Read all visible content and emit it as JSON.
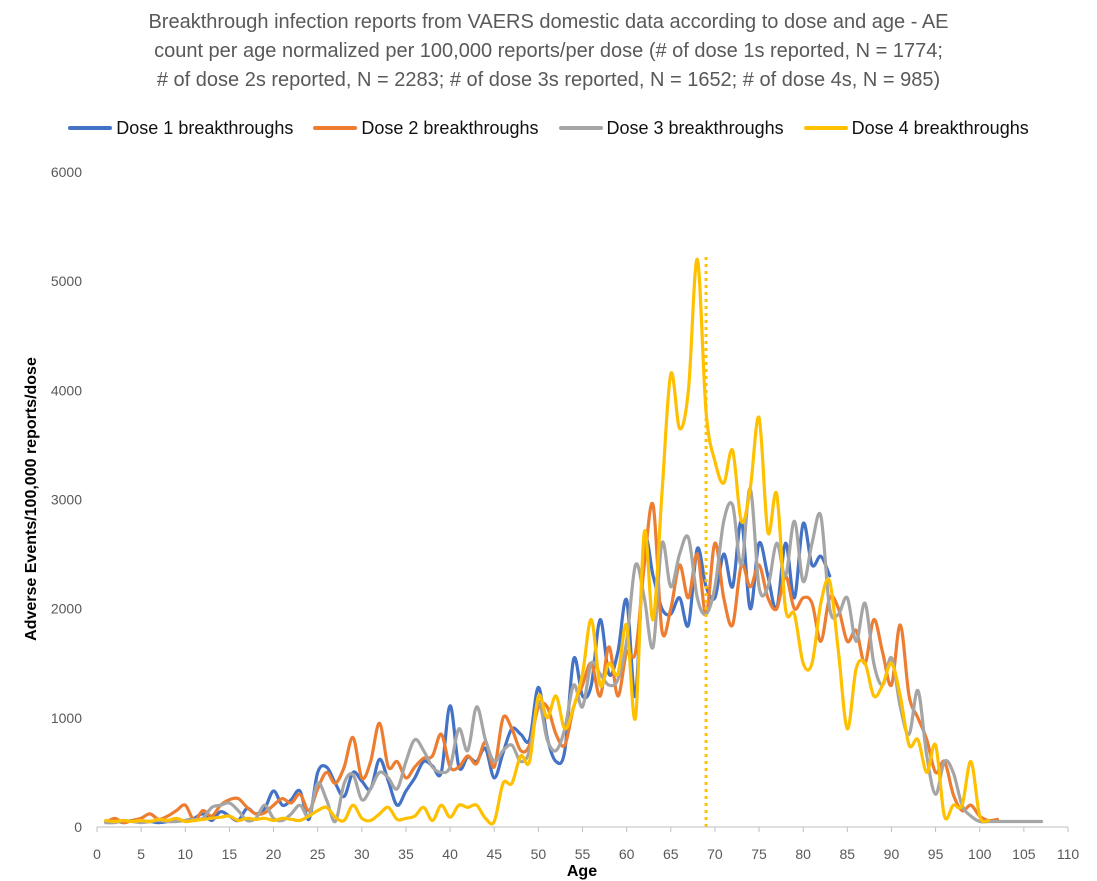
{
  "chart_data": {
    "type": "line",
    "title_lines": [
      "Breakthrough infection reports from VAERS domestic data according to dose and age - AE",
      "count per age normalized per 100,000 reports/per dose (# of dose 1s reported, N = 1774;",
      "# of dose 2s reported, N = 2283; # of dose 3s reported, N = 1652; # of dose 4s, N = 985)"
    ],
    "xlabel": "Age",
    "ylabel": "Adverse Events/100,000 reports/dose",
    "xlim": [
      0,
      110
    ],
    "ylim": [
      0,
      6000
    ],
    "x_ticks": [
      0,
      5,
      10,
      15,
      20,
      25,
      30,
      35,
      40,
      45,
      50,
      55,
      60,
      65,
      70,
      75,
      80,
      85,
      90,
      95,
      100,
      105,
      110
    ],
    "y_ticks": [
      0,
      1000,
      2000,
      3000,
      4000,
      5000,
      6000
    ],
    "x_tick_labels": [
      "0",
      "5",
      "10",
      "15",
      "20",
      "25",
      "30",
      "35",
      "40",
      "45",
      "50",
      "55",
      "60",
      "65",
      "70",
      "75",
      "80",
      "85",
      "90",
      "95",
      "100",
      "105",
      "110"
    ],
    "y_tick_labels": [
      "0",
      "1000",
      "2000",
      "3000",
      "4000",
      "5000",
      "6000"
    ],
    "grid": false,
    "legend_position": "top",
    "reference_line": {
      "x": 69,
      "color": "#FFC000",
      "style": "dotted"
    },
    "series": [
      {
        "name": "Dose 1 breakthroughs",
        "color": "#4472C4",
        "x": [
          1,
          2,
          3,
          4,
          5,
          6,
          7,
          8,
          9,
          10,
          11,
          12,
          13,
          14,
          15,
          16,
          17,
          18,
          19,
          20,
          21,
          22,
          23,
          24,
          25,
          26,
          27,
          28,
          29,
          30,
          31,
          32,
          33,
          34,
          35,
          36,
          37,
          38,
          39,
          40,
          41,
          42,
          43,
          44,
          45,
          46,
          47,
          48,
          49,
          50,
          51,
          52,
          53,
          54,
          55,
          56,
          57,
          58,
          59,
          60,
          61,
          62,
          63,
          64,
          65,
          66,
          67,
          68,
          69,
          70,
          71,
          72,
          73,
          74,
          75,
          76,
          77,
          78,
          79,
          80,
          81,
          82,
          83
        ],
        "y": [
          50,
          60,
          40,
          60,
          50,
          50,
          40,
          50,
          60,
          60,
          80,
          120,
          60,
          140,
          100,
          60,
          170,
          120,
          170,
          330,
          200,
          250,
          330,
          70,
          500,
          550,
          400,
          280,
          500,
          420,
          350,
          620,
          420,
          200,
          330,
          450,
          600,
          560,
          500,
          1110,
          550,
          640,
          600,
          720,
          450,
          680,
          900,
          850,
          800,
          1280,
          820,
          600,
          700,
          1540,
          1200,
          1300,
          1900,
          1400,
          1600,
          2080,
          1200,
          2600,
          2300,
          2000,
          1950,
          2100,
          1850,
          2550,
          2200,
          2100,
          2500,
          2200,
          2800,
          2000,
          2600,
          2300,
          2000,
          2600,
          2100,
          2780,
          2400,
          2480,
          2300
        ]
      },
      {
        "name": "Dose 2 breakthroughs",
        "color": "#ED7D31",
        "x": [
          1,
          2,
          3,
          4,
          5,
          6,
          7,
          8,
          9,
          10,
          11,
          12,
          13,
          14,
          15,
          16,
          17,
          18,
          19,
          20,
          21,
          22,
          23,
          24,
          25,
          26,
          27,
          28,
          29,
          30,
          31,
          32,
          33,
          34,
          35,
          36,
          37,
          38,
          39,
          40,
          41,
          42,
          43,
          44,
          45,
          46,
          47,
          48,
          49,
          50,
          51,
          52,
          53,
          54,
          55,
          56,
          57,
          58,
          59,
          60,
          61,
          62,
          63,
          64,
          65,
          66,
          67,
          68,
          69,
          70,
          71,
          72,
          73,
          74,
          75,
          76,
          77,
          78,
          79,
          80,
          81,
          82,
          83,
          84,
          85,
          86,
          87,
          88,
          89,
          90,
          91,
          92,
          93,
          94,
          95,
          96,
          97,
          98,
          99,
          100,
          101,
          102
        ],
        "y": [
          40,
          80,
          40,
          60,
          80,
          120,
          70,
          100,
          150,
          200,
          60,
          150,
          100,
          200,
          250,
          260,
          180,
          120,
          130,
          200,
          260,
          220,
          300,
          150,
          350,
          500,
          400,
          550,
          820,
          450,
          600,
          950,
          550,
          600,
          450,
          550,
          630,
          650,
          850,
          550,
          550,
          650,
          580,
          780,
          550,
          1000,
          900,
          700,
          750,
          1100,
          1100,
          850,
          750,
          1100,
          1300,
          1500,
          1200,
          1650,
          1200,
          1600,
          1600,
          2400,
          2950,
          1800,
          2000,
          2400,
          2100,
          2500,
          1950,
          2600,
          2100,
          1850,
          2400,
          2200,
          2400,
          2100,
          2000,
          2300,
          2000,
          2100,
          2050,
          1700,
          2100,
          2000,
          1700,
          1800,
          1500,
          1900,
          1600,
          1300,
          1850,
          1200,
          1000,
          800,
          500,
          600,
          300,
          150,
          200,
          100,
          60,
          70
        ]
      },
      {
        "name": "Dose 3 breakthroughs",
        "color": "#A5A5A5",
        "x": [
          1,
          2,
          3,
          4,
          5,
          6,
          7,
          8,
          9,
          10,
          11,
          12,
          13,
          14,
          15,
          16,
          17,
          18,
          19,
          20,
          21,
          22,
          23,
          24,
          25,
          26,
          27,
          28,
          29,
          30,
          31,
          32,
          33,
          34,
          35,
          36,
          37,
          38,
          39,
          40,
          41,
          42,
          43,
          44,
          45,
          46,
          47,
          48,
          49,
          50,
          51,
          52,
          53,
          54,
          55,
          56,
          57,
          58,
          59,
          60,
          61,
          62,
          63,
          64,
          65,
          66,
          67,
          68,
          69,
          70,
          71,
          72,
          73,
          74,
          75,
          76,
          77,
          78,
          79,
          80,
          81,
          82,
          83,
          84,
          85,
          86,
          87,
          88,
          89,
          90,
          91,
          92,
          93,
          94,
          95,
          96,
          97,
          98,
          99,
          100,
          101,
          102,
          103,
          104,
          105,
          106,
          107
        ],
        "y": [
          40,
          40,
          60,
          50,
          40,
          50,
          60,
          50,
          50,
          60,
          70,
          80,
          180,
          200,
          220,
          150,
          60,
          80,
          200,
          80,
          60,
          120,
          200,
          100,
          400,
          250,
          50,
          400,
          480,
          250,
          350,
          500,
          450,
          350,
          600,
          800,
          700,
          550,
          500,
          550,
          900,
          700,
          1100,
          800,
          600,
          700,
          750,
          600,
          700,
          1150,
          800,
          700,
          900,
          1300,
          1100,
          1500,
          1400,
          1300,
          1350,
          1700,
          2400,
          2100,
          1650,
          2600,
          2200,
          2500,
          2650,
          2100,
          1950,
          2200,
          2800,
          2950,
          2400,
          3100,
          2200,
          2200,
          2600,
          2300,
          2800,
          2250,
          2600,
          2850,
          2000,
          1950,
          2100,
          1700,
          2050,
          1500,
          1300,
          1550,
          1100,
          850,
          1250,
          650,
          300,
          600,
          500,
          200,
          100,
          50,
          50,
          50,
          50,
          50,
          50,
          50,
          50
        ]
      },
      {
        "name": "Dose 4 breakthroughs",
        "color": "#FFC000",
        "x": [
          1,
          2,
          3,
          4,
          5,
          6,
          7,
          8,
          9,
          10,
          11,
          12,
          13,
          14,
          15,
          16,
          17,
          18,
          19,
          20,
          21,
          22,
          23,
          24,
          25,
          26,
          27,
          28,
          29,
          30,
          31,
          32,
          33,
          34,
          35,
          36,
          37,
          38,
          39,
          40,
          41,
          42,
          43,
          44,
          45,
          46,
          47,
          48,
          49,
          50,
          51,
          52,
          53,
          54,
          55,
          56,
          57,
          58,
          59,
          60,
          61,
          62,
          63,
          64,
          65,
          66,
          67,
          68,
          69,
          70,
          71,
          72,
          73,
          74,
          75,
          76,
          77,
          78,
          79,
          80,
          81,
          82,
          83,
          84,
          85,
          86,
          87,
          88,
          89,
          90,
          91,
          92,
          93,
          94,
          95,
          96,
          97,
          98,
          99,
          100,
          101
        ],
        "y": [
          60,
          50,
          60,
          50,
          60,
          50,
          70,
          60,
          80,
          50,
          60,
          70,
          80,
          90,
          100,
          60,
          80,
          70,
          80,
          60,
          80,
          70,
          60,
          100,
          150,
          180,
          90,
          60,
          200,
          80,
          60,
          120,
          180,
          70,
          80,
          100,
          180,
          60,
          200,
          90,
          200,
          180,
          200,
          80,
          50,
          400,
          400,
          650,
          600,
          1200,
          1000,
          1200,
          900,
          1100,
          1400,
          1900,
          1300,
          1500,
          1400,
          1850,
          1000,
          2700,
          1900,
          3050,
          4150,
          3650,
          4000,
          5200,
          3800,
          3350,
          3150,
          3450,
          2800,
          3100,
          3750,
          2700,
          3050,
          2000,
          1950,
          1500,
          1500,
          2050,
          2250,
          1600,
          900,
          1450,
          1500,
          1200,
          1300,
          1500,
          1200,
          750,
          800,
          500,
          750,
          100,
          200,
          200,
          600,
          100,
          60
        ]
      }
    ]
  }
}
